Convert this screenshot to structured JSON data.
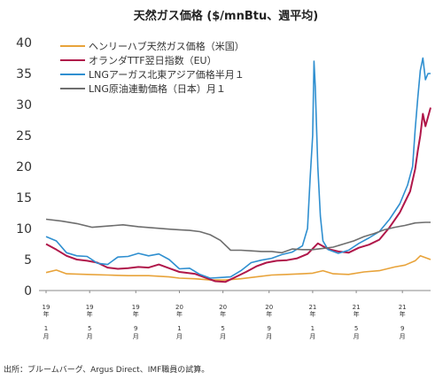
{
  "chart_data": {
    "type": "line",
    "title": "天然ガス価格 ($/mnBtu、週平均)",
    "ylim": [
      0,
      40
    ],
    "yticks": [
      0,
      5,
      10,
      15,
      20,
      25,
      30,
      35,
      40
    ],
    "grid": false,
    "legend_position": "top-left",
    "x_ticks": [
      {
        "year": "19",
        "unit": "年",
        "month": "1",
        "month_unit": "月"
      },
      {
        "year": "19",
        "unit": "年",
        "month": "5",
        "month_unit": "月"
      },
      {
        "year": "19",
        "unit": "年",
        "month": "9",
        "month_unit": "月"
      },
      {
        "year": "20",
        "unit": "年",
        "month": "1",
        "month_unit": "月"
      },
      {
        "year": "20",
        "unit": "年",
        "month": "5",
        "month_unit": "月"
      },
      {
        "year": "20",
        "unit": "年",
        "month": "9",
        "month_unit": "月"
      },
      {
        "year": "21",
        "unit": "年",
        "month": "1",
        "month_unit": "月"
      },
      {
        "year": "21",
        "unit": "年",
        "month": "5",
        "month_unit": "月"
      },
      {
        "year": "21",
        "unit": "年",
        "month": "9",
        "month_unit": "月"
      }
    ],
    "x_range_weeks": [
      0,
      150
    ],
    "x_tick_weeks": [
      0,
      17,
      35,
      52,
      69,
      87,
      104,
      121,
      139
    ],
    "series": [
      {
        "name": "ヘンリーハブ天然ガス価格（米国）",
        "color": "#e8a33a",
        "points": [
          [
            0,
            2.9
          ],
          [
            4,
            3.3
          ],
          [
            8,
            2.7
          ],
          [
            16,
            2.6
          ],
          [
            24,
            2.5
          ],
          [
            32,
            2.4
          ],
          [
            40,
            2.4
          ],
          [
            48,
            2.2
          ],
          [
            52,
            2.0
          ],
          [
            58,
            1.9
          ],
          [
            64,
            1.7
          ],
          [
            70,
            1.7
          ],
          [
            76,
            1.9
          ],
          [
            82,
            2.2
          ],
          [
            88,
            2.5
          ],
          [
            94,
            2.6
          ],
          [
            100,
            2.7
          ],
          [
            104,
            2.8
          ],
          [
            108,
            3.2
          ],
          [
            112,
            2.7
          ],
          [
            118,
            2.6
          ],
          [
            124,
            3.0
          ],
          [
            130,
            3.2
          ],
          [
            136,
            3.8
          ],
          [
            140,
            4.1
          ],
          [
            144,
            4.8
          ],
          [
            146,
            5.6
          ],
          [
            148,
            5.3
          ],
          [
            150,
            5.0
          ]
        ]
      },
      {
        "name": "オランダTTF翌日指数（EU）",
        "color": "#b0174a",
        "points": [
          [
            0,
            7.5
          ],
          [
            4,
            6.6
          ],
          [
            8,
            5.6
          ],
          [
            12,
            5.0
          ],
          [
            16,
            4.8
          ],
          [
            20,
            4.5
          ],
          [
            24,
            3.7
          ],
          [
            28,
            3.5
          ],
          [
            32,
            3.6
          ],
          [
            36,
            3.8
          ],
          [
            40,
            3.7
          ],
          [
            44,
            4.2
          ],
          [
            48,
            3.6
          ],
          [
            52,
            3.0
          ],
          [
            58,
            2.7
          ],
          [
            62,
            2.1
          ],
          [
            66,
            1.5
          ],
          [
            70,
            1.4
          ],
          [
            74,
            2.2
          ],
          [
            78,
            3.0
          ],
          [
            82,
            3.9
          ],
          [
            86,
            4.5
          ],
          [
            90,
            4.8
          ],
          [
            94,
            4.9
          ],
          [
            98,
            5.2
          ],
          [
            102,
            5.9
          ],
          [
            106,
            7.6
          ],
          [
            110,
            6.7
          ],
          [
            114,
            6.3
          ],
          [
            118,
            6.1
          ],
          [
            122,
            6.9
          ],
          [
            126,
            7.4
          ],
          [
            130,
            8.2
          ],
          [
            134,
            10.2
          ],
          [
            138,
            12.6
          ],
          [
            142,
            16.0
          ],
          [
            144,
            19.6
          ],
          [
            145,
            22.5
          ],
          [
            146,
            25.0
          ],
          [
            147,
            28.5
          ],
          [
            148,
            26.5
          ],
          [
            149,
            28.0
          ],
          [
            150,
            29.5
          ]
        ]
      },
      {
        "name": "LNGアーガス北東アジア価格半月１",
        "color": "#2f8fd0",
        "points": [
          [
            0,
            8.7
          ],
          [
            4,
            8.0
          ],
          [
            8,
            6.1
          ],
          [
            12,
            5.6
          ],
          [
            16,
            5.5
          ],
          [
            20,
            4.4
          ],
          [
            24,
            4.2
          ],
          [
            28,
            5.4
          ],
          [
            32,
            5.5
          ],
          [
            36,
            6.0
          ],
          [
            40,
            5.6
          ],
          [
            44,
            5.9
          ],
          [
            48,
            5.0
          ],
          [
            52,
            3.5
          ],
          [
            56,
            3.6
          ],
          [
            60,
            2.6
          ],
          [
            64,
            2.0
          ],
          [
            68,
            2.1
          ],
          [
            72,
            2.2
          ],
          [
            76,
            3.2
          ],
          [
            80,
            4.5
          ],
          [
            84,
            4.9
          ],
          [
            88,
            5.2
          ],
          [
            92,
            5.8
          ],
          [
            96,
            6.2
          ],
          [
            100,
            7.2
          ],
          [
            102,
            10.0
          ],
          [
            103,
            18.0
          ],
          [
            104,
            25.0
          ],
          [
            104.5,
            37.0
          ],
          [
            105,
            33.0
          ],
          [
            106,
            20.0
          ],
          [
            107,
            12.0
          ],
          [
            108,
            8.0
          ],
          [
            110,
            6.6
          ],
          [
            114,
            6.0
          ],
          [
            118,
            6.5
          ],
          [
            122,
            7.6
          ],
          [
            126,
            8.5
          ],
          [
            130,
            9.5
          ],
          [
            134,
            11.5
          ],
          [
            138,
            14.0
          ],
          [
            141,
            17.0
          ],
          [
            143,
            20.0
          ],
          [
            144,
            26.0
          ],
          [
            145,
            31.0
          ],
          [
            146,
            35.5
          ],
          [
            147,
            37.5
          ],
          [
            148,
            34.0
          ],
          [
            149,
            35.0
          ],
          [
            150,
            35.0
          ]
        ]
      },
      {
        "name": "LNG原油連動価格（日本）月１",
        "color": "#6e6e6e",
        "points": [
          [
            0,
            11.5
          ],
          [
            6,
            11.2
          ],
          [
            12,
            10.8
          ],
          [
            18,
            10.2
          ],
          [
            24,
            10.4
          ],
          [
            30,
            10.6
          ],
          [
            36,
            10.3
          ],
          [
            42,
            10.1
          ],
          [
            48,
            9.9
          ],
          [
            52,
            9.8
          ],
          [
            56,
            9.7
          ],
          [
            60,
            9.5
          ],
          [
            64,
            9.0
          ],
          [
            68,
            8.1
          ],
          [
            72,
            6.5
          ],
          [
            76,
            6.5
          ],
          [
            80,
            6.4
          ],
          [
            84,
            6.3
          ],
          [
            88,
            6.3
          ],
          [
            92,
            6.1
          ],
          [
            96,
            6.7
          ],
          [
            100,
            6.6
          ],
          [
            104,
            6.6
          ],
          [
            108,
            6.8
          ],
          [
            112,
            7.0
          ],
          [
            116,
            7.5
          ],
          [
            120,
            8.0
          ],
          [
            124,
            8.7
          ],
          [
            128,
            9.2
          ],
          [
            132,
            9.8
          ],
          [
            136,
            10.2
          ],
          [
            140,
            10.5
          ],
          [
            144,
            10.9
          ],
          [
            148,
            11.0
          ],
          [
            150,
            11.0
          ]
        ]
      }
    ]
  },
  "source": "出所：ブルームバーグ、Argus Direct、IMF職員の試算。"
}
